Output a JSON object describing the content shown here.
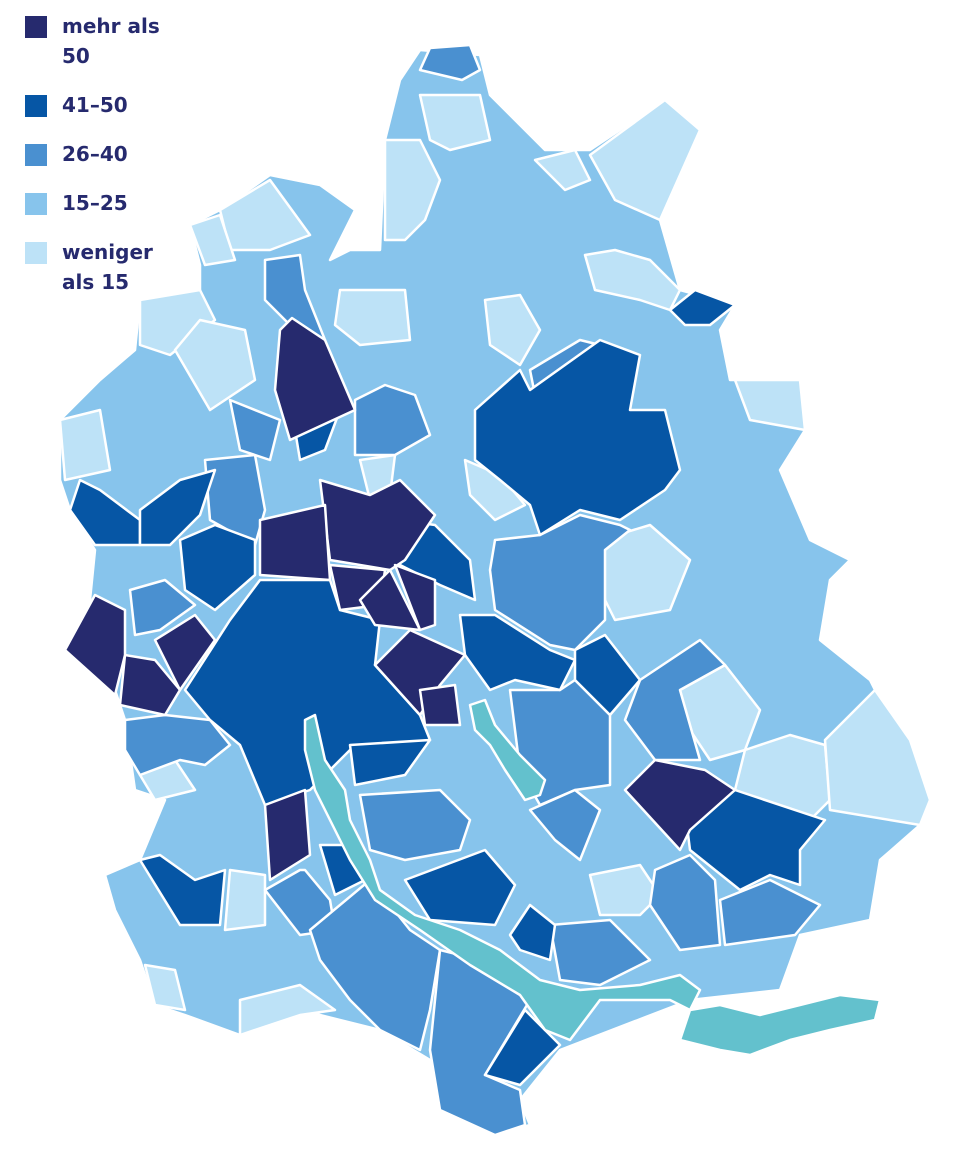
{
  "legend": {
    "items": [
      {
        "label": "mehr als 50",
        "color": "#262a6e"
      },
      {
        "label": "41–50",
        "color": "#0656a5"
      },
      {
        "label": "26–40",
        "color": "#4a90d0"
      },
      {
        "label": "15–25",
        "color": "#87c4ec"
      },
      {
        "label": "weniger als 15",
        "color": "#bde2f7"
      }
    ]
  }
}
